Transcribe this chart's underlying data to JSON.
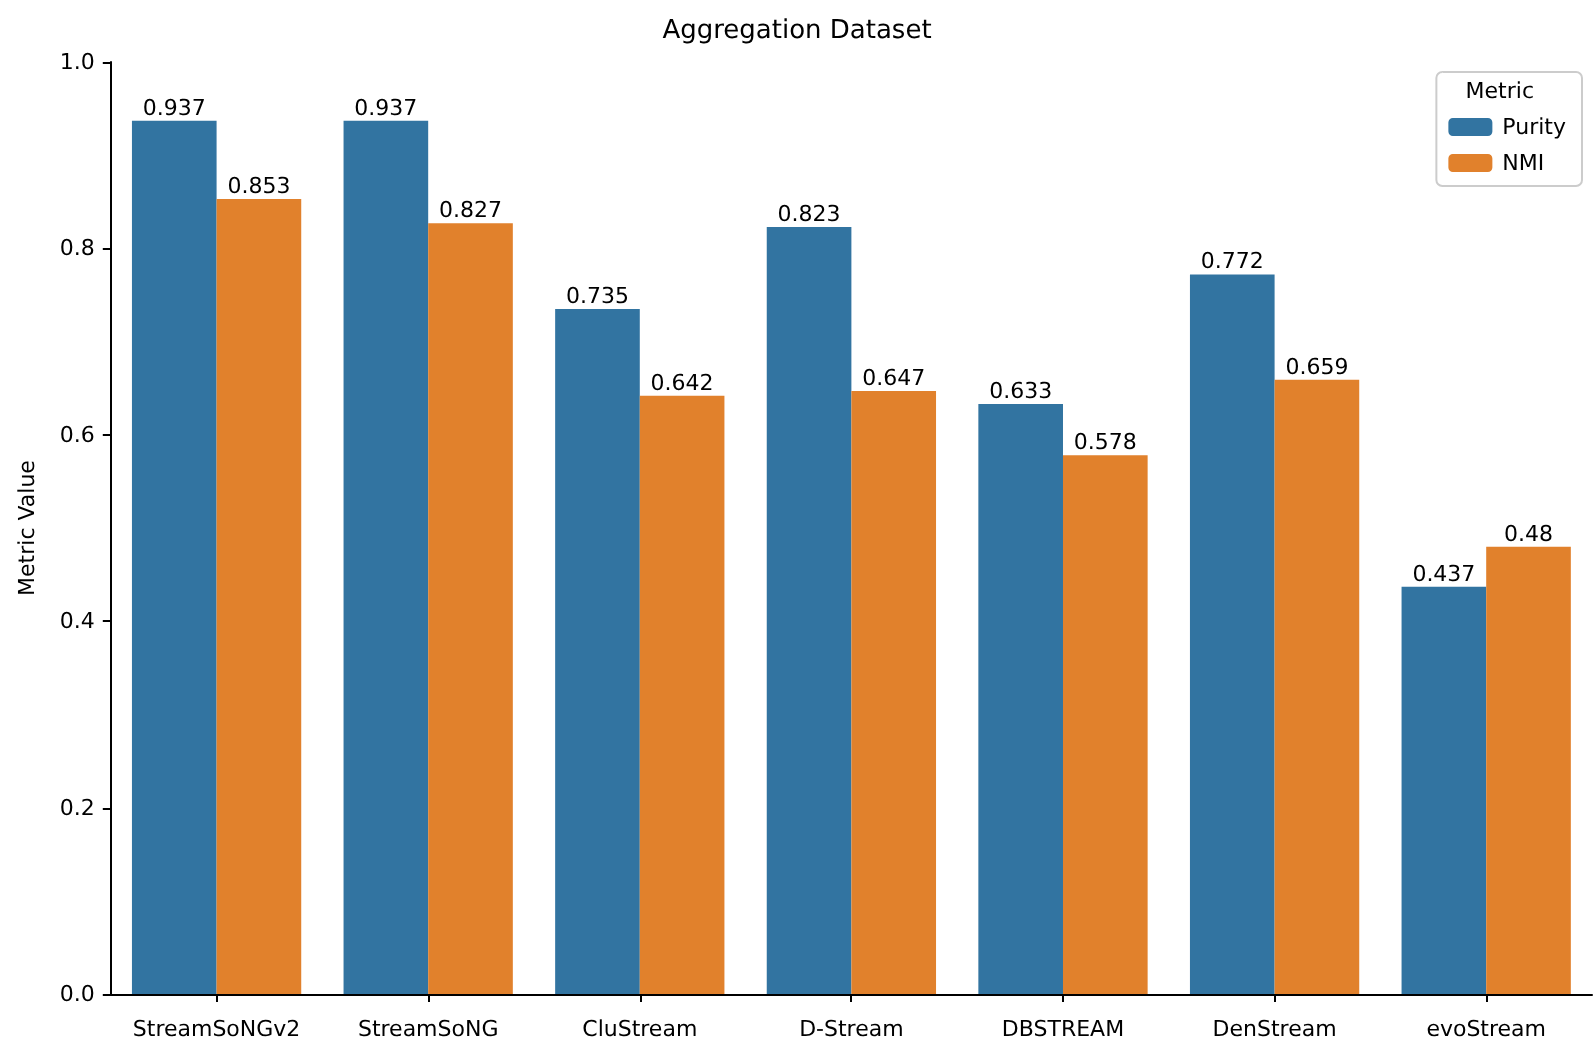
{
  "chart_data": {
    "type": "bar",
    "title": "Aggregation Dataset",
    "ylabel": "Metric Value",
    "legend_title": "Metric",
    "categories": [
      "StreamSoNGv2",
      "StreamSoNG",
      "CluStream",
      "D-Stream",
      "DBSTREAM",
      "DenStream",
      "evoStream"
    ],
    "series": [
      {
        "name": "Purity",
        "color": "#3274a1",
        "values": [
          0.937,
          0.937,
          0.735,
          0.823,
          0.633,
          0.772,
          0.437
        ]
      },
      {
        "name": "NMI",
        "color": "#e1812c",
        "values": [
          0.853,
          0.827,
          0.642,
          0.647,
          0.578,
          0.659,
          0.48
        ]
      }
    ],
    "ylim": [
      0,
      1
    ],
    "yticks": [
      {
        "value": 0,
        "label": "0.0"
      },
      {
        "value": 0.2,
        "label": "0.2"
      },
      {
        "value": 0.4,
        "label": "0.4"
      },
      {
        "value": 0.6,
        "label": "0.6"
      },
      {
        "value": 0.8,
        "label": "0.8"
      },
      {
        "value": 1,
        "label": "1.0"
      }
    ],
    "data_labels": true,
    "legend": "top right",
    "grid": false
  }
}
